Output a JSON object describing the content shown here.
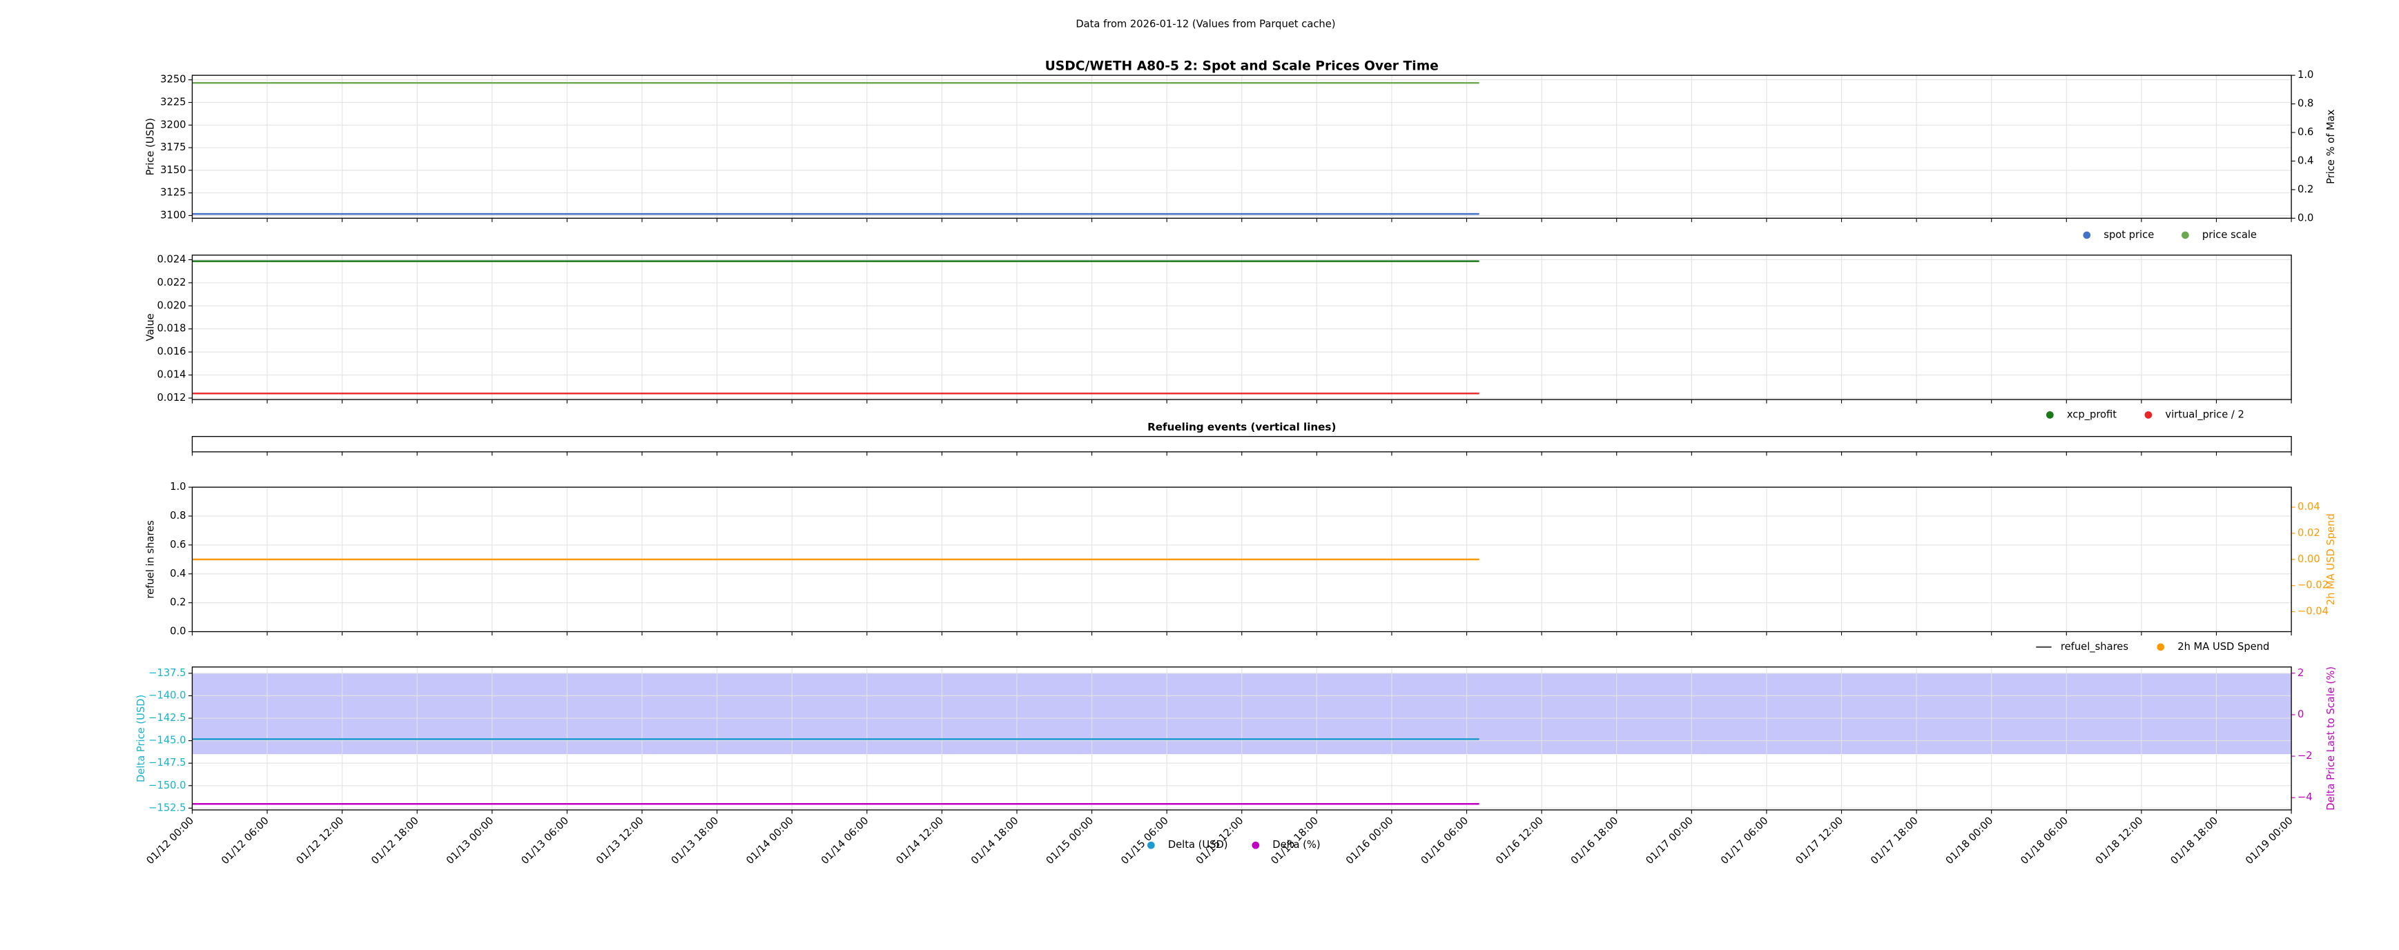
{
  "suptitle": "Data from 2026-01-12 (Values from Parquet cache)",
  "chart_data": [
    {
      "type": "line",
      "title": "USDC/WETH A80-5 2: Spot and Scale Prices Over Time",
      "ylabel": "Price (USD)",
      "y2label": "Price % of Max",
      "x": [
        "01/12 00:00",
        "01/16 07:00"
      ],
      "ylim": [
        3097,
        3255
      ],
      "yticks": [
        3100,
        3125,
        3150,
        3175,
        3200,
        3225,
        3250
      ],
      "y2lim": [
        0,
        1
      ],
      "y2ticks": [
        {
          "value": 0,
          "label": "0.0"
        },
        0.2,
        0.4,
        0.6,
        0.8,
        {
          "value": 1,
          "label": "1.0"
        }
      ],
      "grid": true,
      "legend": "below right",
      "series": [
        {
          "name": "spot price",
          "color": "#4472c4",
          "marker": "o",
          "values": [
            3101.7,
            3101.7
          ]
        },
        {
          "name": "price scale",
          "color": "#6aa84f",
          "marker": "o",
          "values": [
            3246.6,
            3246.6
          ]
        }
      ]
    },
    {
      "type": "line",
      "ylabel": "Value",
      "x": [
        "01/12 00:00",
        "01/16 07:00"
      ],
      "ylim": [
        0.01187,
        0.0244
      ],
      "yticks": [
        0.012,
        0.014,
        0.016,
        0.018,
        {
          "value": 0.02,
          "label": "0.020"
        },
        0.022,
        0.024
      ],
      "grid": true,
      "legend": "below right",
      "series": [
        {
          "name": "xcp_profit",
          "color": "#1a7a1a",
          "marker": "o",
          "values": [
            0.02387,
            0.02387
          ]
        },
        {
          "name": "virtual_price / 2",
          "color": "#e8262a",
          "marker": "o",
          "values": [
            0.0124,
            0.0124
          ]
        }
      ]
    },
    {
      "type": "line",
      "title": "Refueling events (vertical lines)",
      "series": []
    },
    {
      "type": "line",
      "ylabel": "refuel in shares",
      "y2label": "2h MA USD Spend",
      "y2color": "#ff9900",
      "x": [
        "01/12 00:00",
        "01/16 07:00"
      ],
      "ylim": [
        0,
        1
      ],
      "yticks": [
        {
          "value": 0,
          "label": "0.0"
        },
        0.2,
        0.4,
        0.6,
        0.8,
        {
          "value": 1,
          "label": "1.0"
        }
      ],
      "y2lim": [
        -0.0553,
        0.0553
      ],
      "y2ticks": [
        {
          "value": -0.04,
          "label": "−0.04"
        },
        {
          "value": -0.02,
          "label": "−0.02"
        },
        {
          "value": 0,
          "label": "0.00"
        },
        0.02,
        0.04
      ],
      "grid": true,
      "legend": "below right",
      "series": [
        {
          "name": "refuel_shares",
          "color": "#555555",
          "marker": "line",
          "values": [
            null,
            null
          ]
        },
        {
          "name": "2h MA USD Spend",
          "color": "#ff9900",
          "marker": "o",
          "axis": "y2",
          "values": [
            0,
            0
          ]
        }
      ]
    },
    {
      "type": "line",
      "ylabel": "Delta Price (USD)",
      "ycolor": "#17b3c8",
      "y2label": "Delta Price Last to Scale (%)",
      "y2color": "#c000c0",
      "x": [
        "01/12 00:00",
        "01/16 07:00"
      ],
      "xlim": [
        "01/12 00:00",
        "01/19 00:00"
      ],
      "xticks": [
        "01/12 00:00",
        "01/12 06:00",
        "01/12 12:00",
        "01/12 18:00",
        "01/13 00:00",
        "01/13 06:00",
        "01/13 12:00",
        "01/13 18:00",
        "01/14 00:00",
        "01/14 06:00",
        "01/14 12:00",
        "01/14 18:00",
        "01/15 00:00",
        "01/15 06:00",
        "01/15 12:00",
        "01/15 18:00",
        "01/16 00:00",
        "01/16 06:00",
        "01/16 12:00",
        "01/16 18:00",
        "01/17 00:00",
        "01/17 06:00",
        "01/17 12:00",
        "01/17 18:00",
        "01/18 00:00",
        "01/18 06:00",
        "01/18 12:00",
        "01/18 18:00",
        "01/19 00:00"
      ],
      "ylim": [
        -152.7,
        -136.8
      ],
      "yticks": [
        {
          "value": -137.5,
          "label": "−137.5"
        },
        {
          "value": -140,
          "label": "−140.0"
        },
        {
          "value": -142.5,
          "label": "−142.5"
        },
        {
          "value": -145,
          "label": "−145.0"
        },
        {
          "value": -147.5,
          "label": "−147.5"
        },
        {
          "value": -150,
          "label": "−150.0"
        },
        {
          "value": -152.5,
          "label": "−152.5"
        }
      ],
      "y2lim": [
        -4.59,
        2.3
      ],
      "y2ticks": [
        2,
        0,
        {
          "value": -2,
          "label": "−2"
        },
        {
          "value": -4,
          "label": "−4"
        }
      ],
      "span": [
        -146.5,
        -137.5
      ],
      "span_color": "#c6c6fa",
      "grid": true,
      "legend": "below center",
      "series": [
        {
          "name": "Delta (USD)",
          "color": "#1f9ad0",
          "marker": "o",
          "values": [
            -144.83,
            -144.83
          ]
        },
        {
          "name": "Delta (%)",
          "color": "#c000c0",
          "marker": "o",
          "axis": "y2",
          "values": [
            -4.3,
            -4.3
          ]
        }
      ]
    }
  ]
}
